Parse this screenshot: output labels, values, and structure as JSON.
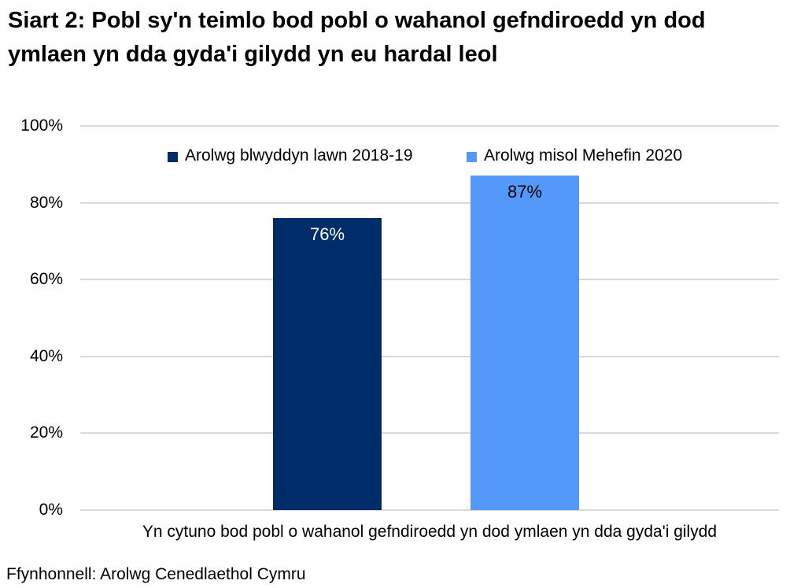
{
  "title": "Siart 2: Pobl sy'n teimlo bod pobl o wahanol gefndiroedd yn dod ymlaen yn dda gyda'i gilydd yn eu hardal leol",
  "source": "Ffynhonnell: Arolwg Cenedlaethol Cymru",
  "chart_data": {
    "type": "bar",
    "title": "Siart 2: Pobl sy'n teimlo bod pobl o wahanol gefndiroedd yn dod ymlaen yn dda gyda'i gilydd yn eu hardal leol",
    "categories": [
      "Yn cytuno bod pobl o wahanol gefndiroedd yn dod ymlaen yn dda gyda'i gilydd"
    ],
    "series": [
      {
        "name": "Arolwg blwyddyn lawn 2018-19",
        "values": [
          76
        ],
        "data_label": "76%",
        "color": "#002d6a",
        "label_color": "#ffffff"
      },
      {
        "name": "Arolwg misol Mehefin 2020",
        "values": [
          87
        ],
        "data_label": "87%",
        "color": "#5499fa",
        "label_color": "#000000"
      }
    ],
    "xlabel": "Yn cytuno bod pobl o wahanol gefndiroedd yn dod ymlaen yn dda gyda'i gilydd",
    "ylabel": "",
    "ylim": [
      0,
      100
    ],
    "yticks": [
      0,
      20,
      40,
      60,
      80,
      100
    ],
    "ytick_labels": [
      "0%",
      "20%",
      "40%",
      "60%",
      "80%",
      "100%"
    ],
    "grid": "horizontal",
    "grid_color": "#d9d9d9",
    "legend_position": "top"
  }
}
